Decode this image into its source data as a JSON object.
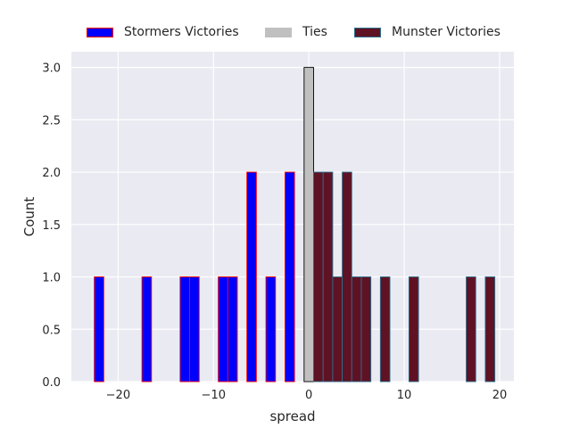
{
  "chart_data": {
    "type": "bar",
    "xlabel": "spread",
    "ylabel": "Count",
    "xlim": [
      -24.9,
      21.5
    ],
    "ylim": [
      0,
      3.15
    ],
    "x_ticks": [
      -20,
      -10,
      0,
      10,
      20
    ],
    "x_tick_labels": [
      "−20",
      "−10",
      "0",
      "10",
      "20"
    ],
    "y_ticks": [
      0.0,
      0.5,
      1.0,
      1.5,
      2.0,
      2.5,
      3.0
    ],
    "y_tick_labels": [
      "0.0",
      "0.5",
      "1.0",
      "1.5",
      "2.0",
      "2.5",
      "3.0"
    ],
    "grid": true,
    "legend_position": "top-center",
    "bin_width": 1,
    "series": [
      {
        "name": "Stormers Victories",
        "fill": "#0000ff",
        "edge": "#ff0000",
        "x": [
          -22,
          -17,
          -13,
          -12,
          -9,
          -8,
          -6,
          -4,
          -2
        ],
        "values": [
          1,
          1,
          1,
          1,
          1,
          1,
          2,
          1,
          2
        ]
      },
      {
        "name": "Ties",
        "fill": "#c0c0c0",
        "edge": "#000000",
        "x": [
          0
        ],
        "values": [
          3
        ]
      },
      {
        "name": "Munster Victories",
        "fill": "#5e1224",
        "edge": "#2d6e8c",
        "x": [
          1,
          2,
          3,
          4,
          5,
          6,
          8,
          11,
          17,
          19
        ],
        "values": [
          2,
          2,
          1,
          2,
          1,
          1,
          1,
          1,
          1,
          1
        ]
      }
    ]
  }
}
